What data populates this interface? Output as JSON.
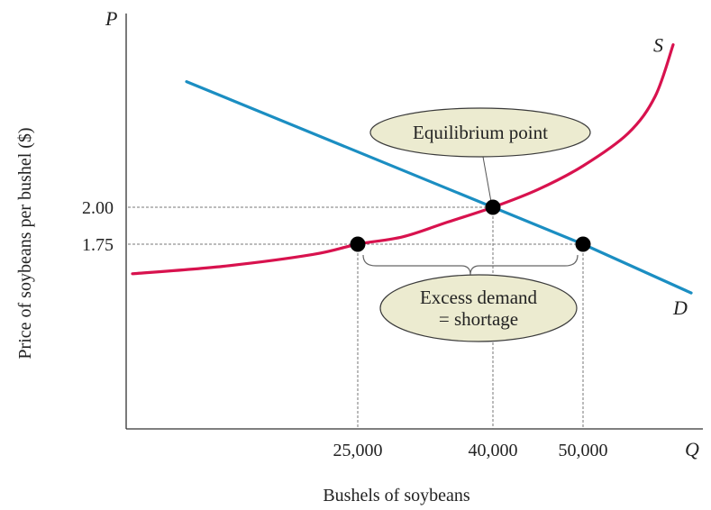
{
  "chart_data": {
    "type": "line",
    "xlabel": "Bushels of soybeans",
    "ylabel": "Price of soybeans per bushel ($)",
    "x_axis_symbol": "Q",
    "y_axis_symbol": "P",
    "x_ticks": [
      {
        "value": 25000,
        "label": "25,000"
      },
      {
        "value": 40000,
        "label": "40,000"
      },
      {
        "value": 50000,
        "label": "50,000"
      }
    ],
    "y_ticks": [
      {
        "value": 2.0,
        "label": "2.00"
      },
      {
        "value": 1.75,
        "label": "1.75"
      }
    ],
    "series": [
      {
        "name": "S",
        "color": "#d8124e",
        "points": [
          [
            0,
            1.55
          ],
          [
            10000,
            1.6
          ],
          [
            20000,
            1.68
          ],
          [
            25000,
            1.75
          ],
          [
            30000,
            1.8
          ],
          [
            35000,
            1.9
          ],
          [
            40000,
            2.0
          ],
          [
            45000,
            2.12
          ],
          [
            50000,
            2.28
          ],
          [
            55000,
            2.5
          ],
          [
            58000,
            2.75
          ],
          [
            60000,
            3.1
          ]
        ]
      },
      {
        "name": "D",
        "color": "#1b8ec2",
        "points": [
          [
            6000,
            2.85
          ],
          [
            40000,
            2.0
          ],
          [
            50000,
            1.75
          ],
          [
            62000,
            1.42
          ]
        ]
      }
    ],
    "points": [
      {
        "x": 25000,
        "y": 1.75
      },
      {
        "x": 40000,
        "y": 2.0
      },
      {
        "x": 50000,
        "y": 1.75
      }
    ],
    "annotations": [
      {
        "text": "Equilibrium point",
        "x": 40000,
        "y": 2.0
      },
      {
        "text": "Excess demand\n= shortage",
        "x_from": 25000,
        "x_to": 50000,
        "y": 1.75
      }
    ],
    "callout_lines": [
      "Excess demand",
      "= shortage"
    ]
  }
}
